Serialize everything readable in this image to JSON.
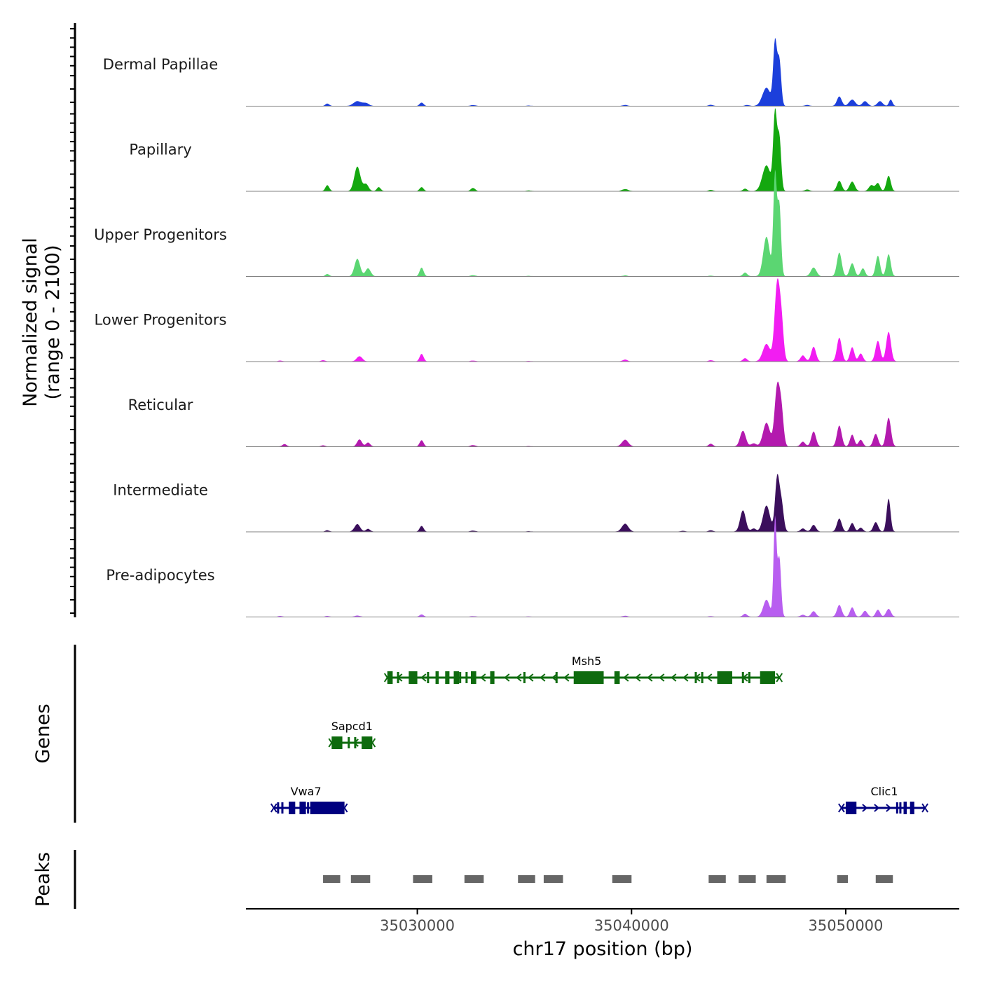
{
  "chart_data": {
    "type": "area",
    "title": "",
    "xlabel": "chr17 position (bp)",
    "ylabel": [
      "Normalized signal",
      "(range 0 - 2100)"
    ],
    "xlim": [
      35022000,
      35055300
    ],
    "ylim": [
      0,
      2100
    ],
    "x_ticks": [
      35030000,
      35040000,
      35050000
    ],
    "x_tick_labels": [
      "35030000",
      "35040000",
      "35050000"
    ],
    "series": [
      {
        "name": "Dermal Papillae",
        "color": "#1c3fdb",
        "peaks": [
          [
            35025800,
            60,
            90
          ],
          [
            35027200,
            120,
            180
          ],
          [
            35027600,
            70,
            140
          ],
          [
            35030200,
            85,
            90
          ],
          [
            35032600,
            22,
            120
          ],
          [
            35035200,
            10,
            120
          ],
          [
            35039700,
            25,
            110
          ],
          [
            35043700,
            30,
            100
          ],
          [
            35045400,
            25,
            100
          ],
          [
            35046300,
            460,
            190
          ],
          [
            35046700,
            1600,
            85
          ],
          [
            35046900,
            1150,
            85
          ],
          [
            35048200,
            25,
            110
          ],
          [
            35049700,
            240,
            110
          ],
          [
            35050300,
            160,
            140
          ],
          [
            35050900,
            120,
            120
          ],
          [
            35051600,
            120,
            120
          ],
          [
            35052100,
            160,
            80
          ]
        ]
      },
      {
        "name": "Papillary",
        "color": "#14a80f",
        "peaks": [
          [
            35025800,
            150,
            90
          ],
          [
            35027200,
            620,
            140
          ],
          [
            35027600,
            180,
            120
          ],
          [
            35028200,
            100,
            90
          ],
          [
            35030200,
            100,
            90
          ],
          [
            35032600,
            80,
            100
          ],
          [
            35035200,
            15,
            120
          ],
          [
            35039700,
            50,
            140
          ],
          [
            35043700,
            30,
            100
          ],
          [
            35045300,
            60,
            100
          ],
          [
            35046300,
            650,
            190
          ],
          [
            35046700,
            1950,
            85
          ],
          [
            35046900,
            1350,
            85
          ],
          [
            35048200,
            40,
            110
          ],
          [
            35049700,
            260,
            110
          ],
          [
            35050300,
            240,
            120
          ],
          [
            35051200,
            150,
            120
          ],
          [
            35051500,
            200,
            100
          ],
          [
            35052000,
            390,
            100
          ]
        ]
      },
      {
        "name": "Upper Progenitors",
        "color": "#5bd672",
        "peaks": [
          [
            35025800,
            55,
            90
          ],
          [
            35027200,
            440,
            130
          ],
          [
            35027700,
            200,
            120
          ],
          [
            35030200,
            220,
            90
          ],
          [
            35032600,
            25,
            120
          ],
          [
            35035200,
            10,
            120
          ],
          [
            35039700,
            20,
            110
          ],
          [
            35043700,
            15,
            100
          ],
          [
            35045300,
            90,
            100
          ],
          [
            35046300,
            1000,
            150
          ],
          [
            35046700,
            2600,
            80
          ],
          [
            35046900,
            1800,
            80
          ],
          [
            35048500,
            220,
            130
          ],
          [
            35049700,
            600,
            110
          ],
          [
            35050300,
            330,
            110
          ],
          [
            35050800,
            200,
            100
          ],
          [
            35051500,
            520,
            100
          ],
          [
            35052000,
            560,
            100
          ]
        ]
      },
      {
        "name": "Lower Progenitors",
        "color": "#f21df2",
        "peaks": [
          [
            35023600,
            20,
            100
          ],
          [
            35025600,
            30,
            90
          ],
          [
            35027300,
            130,
            130
          ],
          [
            35030200,
            190,
            90
          ],
          [
            35032600,
            20,
            120
          ],
          [
            35035200,
            10,
            120
          ],
          [
            35039700,
            45,
            110
          ],
          [
            35043700,
            30,
            100
          ],
          [
            35045300,
            80,
            100
          ],
          [
            35046300,
            440,
            170
          ],
          [
            35046800,
            1950,
            120
          ],
          [
            35047000,
            900,
            100
          ],
          [
            35048000,
            150,
            110
          ],
          [
            35048500,
            370,
            110
          ],
          [
            35049700,
            600,
            110
          ],
          [
            35050300,
            360,
            100
          ],
          [
            35050700,
            200,
            100
          ],
          [
            35051500,
            520,
            110
          ],
          [
            35052000,
            750,
            110
          ]
        ]
      },
      {
        "name": "Reticular",
        "color": "#b31aae",
        "peaks": [
          [
            35023800,
            60,
            100
          ],
          [
            35025600,
            30,
            90
          ],
          [
            35027300,
            180,
            110
          ],
          [
            35027700,
            100,
            100
          ],
          [
            35030200,
            160,
            90
          ],
          [
            35032600,
            35,
            120
          ],
          [
            35035200,
            10,
            120
          ],
          [
            35039700,
            170,
            150
          ],
          [
            35043700,
            70,
            100
          ],
          [
            35045200,
            400,
            130
          ],
          [
            35045700,
            80,
            120
          ],
          [
            35046300,
            600,
            160
          ],
          [
            35046800,
            1500,
            120
          ],
          [
            35047000,
            800,
            100
          ],
          [
            35048000,
            120,
            110
          ],
          [
            35048500,
            380,
            110
          ],
          [
            35049700,
            530,
            110
          ],
          [
            35050300,
            300,
            100
          ],
          [
            35050700,
            170,
            100
          ],
          [
            35051400,
            320,
            110
          ],
          [
            35052000,
            730,
            110
          ]
        ]
      },
      {
        "name": "Intermediate",
        "color": "#3b0f5c",
        "peaks": [
          [
            35025800,
            35,
            90
          ],
          [
            35027200,
            190,
            130
          ],
          [
            35027700,
            70,
            100
          ],
          [
            35030200,
            145,
            90
          ],
          [
            35032600,
            25,
            120
          ],
          [
            35035200,
            10,
            120
          ],
          [
            35039700,
            200,
            150
          ],
          [
            35042400,
            20,
            110
          ],
          [
            35043700,
            35,
            100
          ],
          [
            35045200,
            540,
            130
          ],
          [
            35045700,
            80,
            110
          ],
          [
            35046300,
            660,
            160
          ],
          [
            35046800,
            1350,
            100
          ],
          [
            35047000,
            700,
            100
          ],
          [
            35048000,
            80,
            110
          ],
          [
            35048500,
            170,
            110
          ],
          [
            35049700,
            330,
            110
          ],
          [
            35050300,
            220,
            100
          ],
          [
            35050700,
            100,
            100
          ],
          [
            35051400,
            240,
            110
          ],
          [
            35052000,
            840,
            90
          ]
        ]
      },
      {
        "name": "Pre-adipocytes",
        "color": "#b85ef0",
        "peaks": [
          [
            35023600,
            20,
            100
          ],
          [
            35025800,
            20,
            90
          ],
          [
            35027200,
            30,
            120
          ],
          [
            35030200,
            60,
            90
          ],
          [
            35032600,
            15,
            120
          ],
          [
            35035200,
            8,
            120
          ],
          [
            35039700,
            25,
            110
          ],
          [
            35043700,
            15,
            100
          ],
          [
            35045300,
            75,
            100
          ],
          [
            35046300,
            430,
            150
          ],
          [
            35046700,
            2500,
            70
          ],
          [
            35046900,
            1500,
            80
          ],
          [
            35048000,
            50,
            110
          ],
          [
            35048500,
            140,
            110
          ],
          [
            35049700,
            300,
            110
          ],
          [
            35050300,
            240,
            100
          ],
          [
            35050900,
            150,
            110
          ],
          [
            35051500,
            180,
            100
          ],
          [
            35052000,
            200,
            110
          ]
        ]
      }
    ],
    "genes": [
      {
        "name": "Msh5",
        "strand": "-",
        "start": 35028600,
        "end": 35046900,
        "row": 0,
        "color": "#0e6b0e",
        "exons": [
          [
            35028600,
            35028850
          ],
          [
            35029600,
            35030000
          ],
          [
            35030850,
            35031000
          ],
          [
            35031300,
            35031500
          ],
          [
            35031700,
            35031950
          ],
          [
            35032500,
            35032750
          ],
          [
            35033400,
            35033600
          ],
          [
            35037300,
            35038700
          ],
          [
            35039200,
            35039450
          ],
          [
            35044000,
            35044700
          ],
          [
            35046000,
            35046700
          ]
        ],
        "ticks": [
          35029100,
          35030500,
          35032000,
          35032300,
          35035000,
          35036500,
          35043000,
          35043300,
          35045200,
          35045500
        ]
      },
      {
        "name": "Sapcd1",
        "strand": "-",
        "start": 35026000,
        "end": 35027900,
        "row": 1,
        "color": "#0e6b0e",
        "exons": [
          [
            35026000,
            35026500
          ],
          [
            35027400,
            35027900
          ]
        ],
        "ticks": [
          35026800,
          35027100
        ]
      },
      {
        "name": "Vwa7",
        "strand": "+",
        "start": 35023300,
        "end": 35026600,
        "row": 2,
        "color": "#000080",
        "exons": [
          [
            35024000,
            35024300
          ],
          [
            35024500,
            35024800
          ],
          [
            35025000,
            35026600
          ]
        ],
        "ticks": [
          35023500,
          35023700,
          35024900
        ]
      },
      {
        "name": "Clic1",
        "strand": "+",
        "start": 35049800,
        "end": 35053700,
        "row": 2,
        "color": "#000080",
        "exons": [
          [
            35050000,
            35050500
          ],
          [
            35052700,
            35052850
          ],
          [
            35053000,
            35053200
          ]
        ],
        "ticks": [
          35050200,
          35052400,
          35052550
        ]
      }
    ],
    "peaks": [
      [
        35025600,
        35026400
      ],
      [
        35026900,
        35027800
      ],
      [
        35029800,
        35030700
      ],
      [
        35032200,
        35033100
      ],
      [
        35034700,
        35035500
      ],
      [
        35035900,
        35036800
      ],
      [
        35039100,
        35040000
      ],
      [
        35043600,
        35044400
      ],
      [
        35045000,
        35045800
      ],
      [
        35046300,
        35047200
      ],
      [
        35049600,
        35050100
      ],
      [
        35051400,
        35052200
      ]
    ],
    "track_titles": {
      "genes": "Genes",
      "peaks": "Peaks"
    },
    "colors": {
      "axis": "#000000",
      "baseline": "#808080",
      "peak_box": "#666666"
    }
  }
}
